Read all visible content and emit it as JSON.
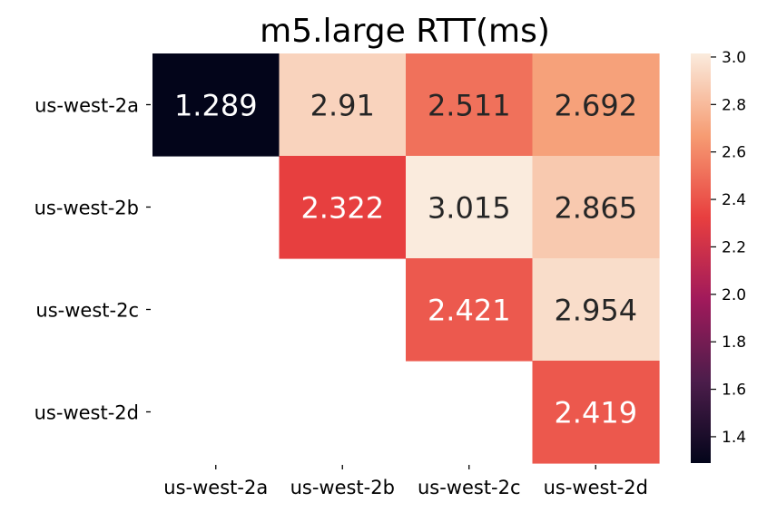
{
  "chart_data": {
    "type": "heatmap",
    "title": "m5.large RTT(ms)",
    "xlabel": "",
    "ylabel": "",
    "rows": [
      "us-west-2a",
      "us-west-2b",
      "us-west-2c",
      "us-west-2d"
    ],
    "columns": [
      "us-west-2a",
      "us-west-2b",
      "us-west-2c",
      "us-west-2d"
    ],
    "values": [
      [
        1.289,
        2.91,
        2.511,
        2.692
      ],
      [
        null,
        2.322,
        3.015,
        2.865
      ],
      [
        null,
        null,
        2.421,
        2.954
      ],
      [
        null,
        null,
        null,
        2.419
      ]
    ],
    "cell_labels": [
      [
        "1.289",
        "2.91",
        "2.511",
        "2.692"
      ],
      [
        "",
        "2.322",
        "3.015",
        "2.865"
      ],
      [
        "",
        "",
        "2.421",
        "2.954"
      ],
      [
        "",
        "",
        "",
        "2.419"
      ]
    ],
    "colorbar": {
      "min": 1.289,
      "max": 3.015,
      "ticks": [
        1.4,
        1.6,
        1.8,
        2.0,
        2.2,
        2.4,
        2.6,
        2.8,
        3.0
      ],
      "tick_labels": [
        "1.4",
        "1.6",
        "1.8",
        "2.0",
        "2.2",
        "2.4",
        "2.6",
        "2.8",
        "3.0"
      ]
    },
    "colormap": [
      "#03051a",
      "#4c1d4b",
      "#a11a5b",
      "#e83f3f",
      "#f69c73",
      "#faebdd"
    ],
    "grid": false,
    "legend": "colorbar-right"
  }
}
